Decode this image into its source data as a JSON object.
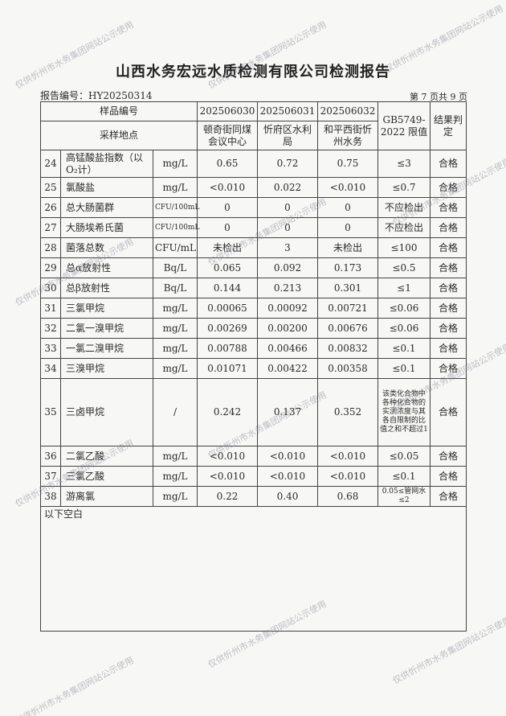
{
  "title": "山西水务宏远水质检测有限公司检测报告",
  "report_no": "报告编号：HY20250314",
  "page_info": "第 7 页共 9 页",
  "header": {
    "sample_no_label": "样品编号",
    "location_label": "采样地点",
    "samples": [
      "202506030",
      "202506031",
      "202506032"
    ],
    "locations": [
      "顿奇街同煤会议中心",
      "忻府区水利局",
      "和平西街忻州水务"
    ],
    "limit_label": "GB5749-2022 限值",
    "result_label": "结果判定"
  },
  "rows": [
    {
      "no": "24",
      "name": "高锰酸盐指数（以O₂计）",
      "unit": "mg/L",
      "v": [
        "0.65",
        "0.72",
        "0.75"
      ],
      "limit": "≤3",
      "result": "合格"
    },
    {
      "no": "25",
      "name": "氯酸盐",
      "unit": "mg/L",
      "v": [
        "<0.010",
        "0.022",
        "<0.010"
      ],
      "limit": "≤0.7",
      "result": "合格"
    },
    {
      "no": "26",
      "name": "总大肠菌群",
      "unit": "CFU/100mL",
      "v": [
        "0",
        "0",
        "0"
      ],
      "limit": "不应检出",
      "result": "合格"
    },
    {
      "no": "27",
      "name": "大肠埃希氏菌",
      "unit": "CFU/100mL",
      "v": [
        "0",
        "0",
        "0"
      ],
      "limit": "不应检出",
      "result": "合格"
    },
    {
      "no": "28",
      "name": "菌落总数",
      "unit": "CFU/mL",
      "v": [
        "未检出",
        "3",
        "未检出"
      ],
      "limit": "≤100",
      "result": "合格"
    },
    {
      "no": "29",
      "name": "总α放射性",
      "unit": "Bq/L",
      "v": [
        "0.065",
        "0.092",
        "0.173"
      ],
      "limit": "≤0.5",
      "result": "合格"
    },
    {
      "no": "30",
      "name": "总β放射性",
      "unit": "Bq/L",
      "v": [
        "0.144",
        "0.213",
        "0.301"
      ],
      "limit": "≤1",
      "result": "合格"
    },
    {
      "no": "31",
      "name": "三氯甲烷",
      "unit": "mg/L",
      "v": [
        "0.00065",
        "0.00092",
        "0.00721"
      ],
      "limit": "≤0.06",
      "result": "合格"
    },
    {
      "no": "32",
      "name": "二氯一溴甲烷",
      "unit": "mg/L",
      "v": [
        "0.00269",
        "0.00200",
        "0.00676"
      ],
      "limit": "≤0.06",
      "result": "合格"
    },
    {
      "no": "33",
      "name": "一氯二溴甲烷",
      "unit": "mg/L",
      "v": [
        "0.00788",
        "0.00466",
        "0.00832"
      ],
      "limit": "≤0.1",
      "result": "合格"
    },
    {
      "no": "34",
      "name": "三溴甲烷",
      "unit": "mg/L",
      "v": [
        "0.01071",
        "0.00422",
        "0.00358"
      ],
      "limit": "≤0.1",
      "result": "合格"
    },
    {
      "no": "35",
      "name": "三卤甲烷",
      "unit": "/",
      "v": [
        "0.242",
        "0.137",
        "0.352"
      ],
      "limit": "该类化合物中各种化合物的实测浓度与其各自限制的比值之和不超过1",
      "result": "合格"
    },
    {
      "no": "36",
      "name": "二氯乙酸",
      "unit": "mg/L",
      "v": [
        "<0.010",
        "<0.010",
        "<0.010"
      ],
      "limit": "≤0.05",
      "result": "合格"
    },
    {
      "no": "37",
      "name": "三氯乙酸",
      "unit": "mg/L",
      "v": [
        "<0.010",
        "<0.010",
        "<0.010"
      ],
      "limit": "≤0.1",
      "result": "合格"
    },
    {
      "no": "38",
      "name": "游离氯",
      "unit": "mg/L",
      "v": [
        "0.22",
        "0.40",
        "0.68"
      ],
      "limit": "0.05≤管网水≤2",
      "result": "合格"
    }
  ],
  "footer_note": "以下空白",
  "watermark": "仅供忻州市水务集团网站公示使用"
}
